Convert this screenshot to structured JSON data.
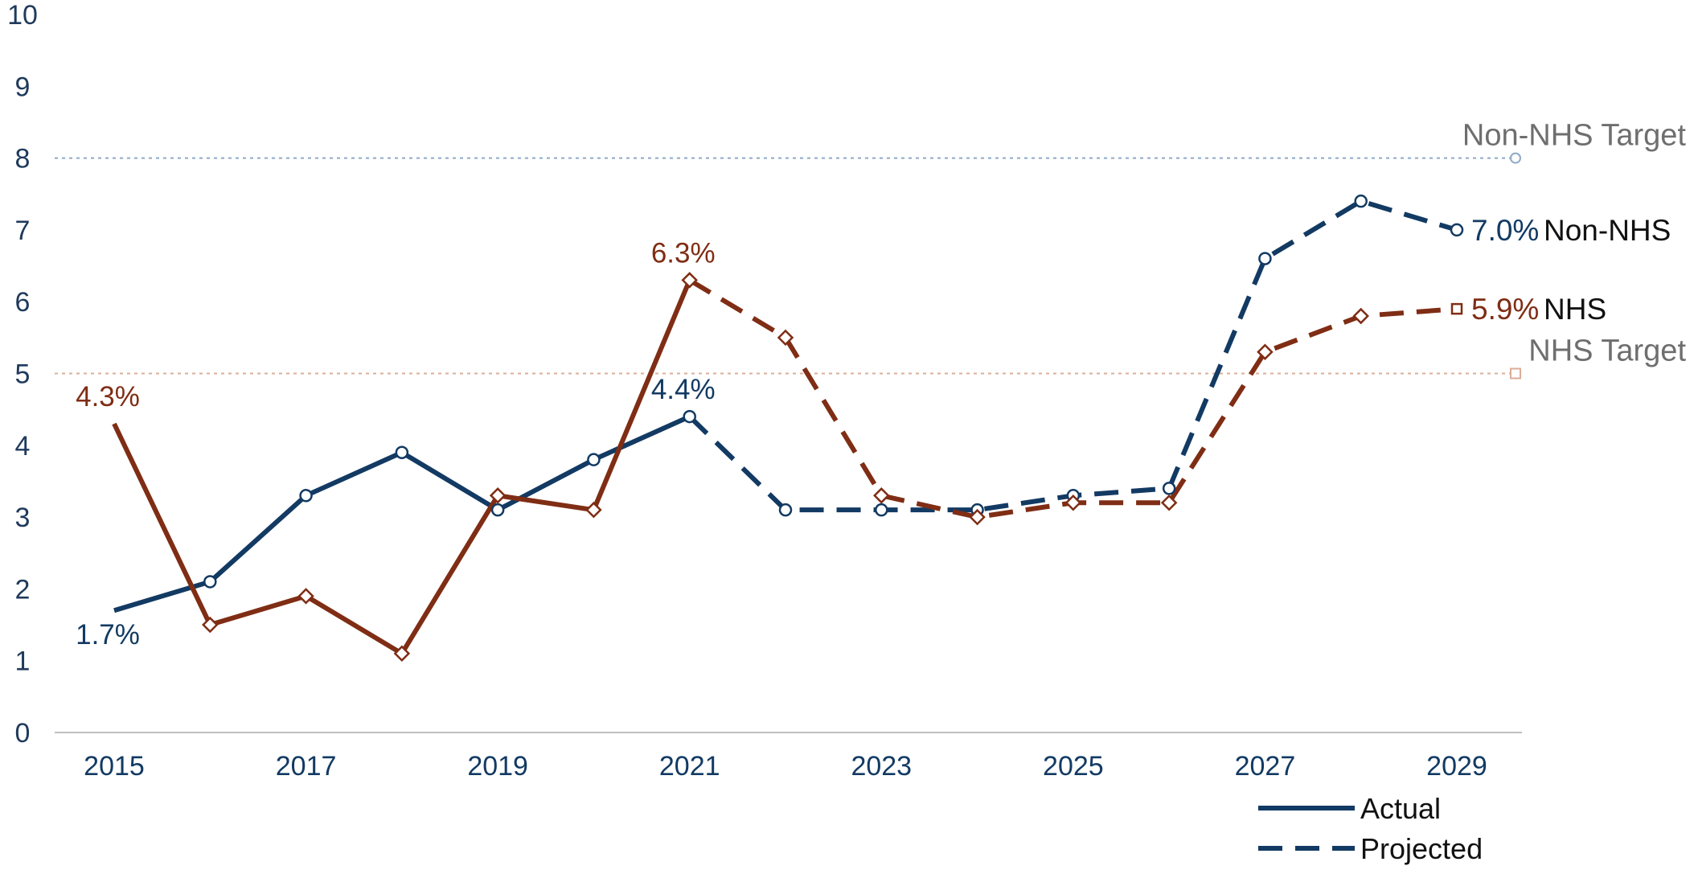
{
  "chart_data": {
    "type": "line",
    "x": [
      2015,
      2016,
      2017,
      2018,
      2019,
      2020,
      2021,
      2022,
      2023,
      2024,
      2025,
      2026,
      2027,
      2028,
      2029
    ],
    "x_tick_labels": [
      "2015",
      "2017",
      "2019",
      "2021",
      "2023",
      "2025",
      "2027",
      "2029"
    ],
    "y_tick_labels": [
      "0",
      "1",
      "2",
      "3",
      "4",
      "5",
      "6",
      "7",
      "8",
      "9",
      "10"
    ],
    "ylim": [
      0,
      10
    ],
    "xlim": [
      2014.7,
      2029.6
    ],
    "grid": false,
    "series": [
      {
        "name": "Non-NHS",
        "color": "#123a63",
        "marker": "circle",
        "actual_until": 2021,
        "values": [
          1.7,
          2.1,
          3.3,
          3.9,
          3.1,
          3.8,
          4.4,
          3.1,
          3.1,
          3.1,
          3.3,
          3.4,
          6.6,
          7.4,
          7.0
        ]
      },
      {
        "name": "NHS",
        "color": "#7f2d14",
        "marker": "square",
        "actual_until": 2021,
        "values": [
          4.3,
          1.5,
          1.9,
          1.1,
          3.3,
          3.1,
          6.3,
          5.5,
          3.3,
          3.0,
          3.2,
          3.2,
          5.3,
          5.8,
          5.9
        ]
      }
    ],
    "targets": [
      {
        "label": "Non-NHS Target",
        "value": 8.0,
        "color": "#8ea9c9"
      },
      {
        "label": "NHS Target",
        "value": 5.0,
        "color": "#dcae98"
      }
    ],
    "annotations": [
      {
        "text": "4.3%",
        "series": "NHS",
        "x": 2015,
        "color": "#7f2d14"
      },
      {
        "text": "1.7%",
        "series": "Non-NHS",
        "x": 2015,
        "color": "#123a63"
      },
      {
        "text": "6.3%",
        "series": "NHS",
        "x": 2021,
        "color": "#7f2d14"
      },
      {
        "text": "4.4%",
        "series": "Non-NHS",
        "x": 2021,
        "color": "#123a63"
      }
    ],
    "end_labels": [
      {
        "value_text": "7.0%",
        "name": "Non-NHS",
        "color": "#123a63"
      },
      {
        "value_text": "5.9%",
        "name": "NHS",
        "color": "#7f2d14"
      }
    ],
    "legend": {
      "placement": "bottom-right",
      "items": [
        {
          "label": "Actual",
          "style": "solid"
        },
        {
          "label": "Projected",
          "style": "dashed"
        }
      ]
    }
  }
}
